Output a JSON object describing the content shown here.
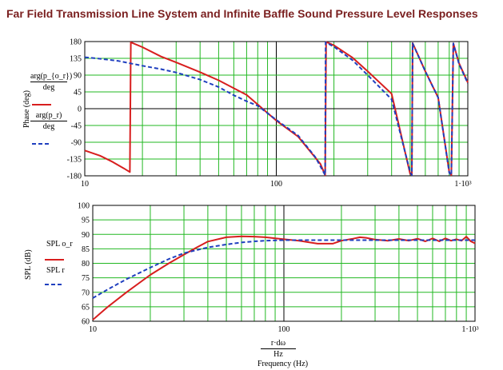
{
  "title": "Far Field Transmission Line System and Infinite Baffle Sound Pressure Level Responses",
  "colors": {
    "series_red": "#d81e1e",
    "series_blue": "#1f3fbf",
    "grid": "#22b822",
    "title": "#7a1f1f"
  },
  "top_plot": {
    "ylabel": "Phase (deg)",
    "legend": [
      {
        "numerator": "arg(p_{o_r})",
        "denominator": "deg",
        "line": "solid",
        "color": "#d81e1e"
      },
      {
        "numerator": "arg(p_r)",
        "denominator": "deg",
        "line": "dashed",
        "color": "#1f3fbf"
      }
    ],
    "ytick_labels": [
      "180",
      "135",
      "90",
      "45",
      "0",
      "-45",
      "-90",
      "-135",
      "-180"
    ],
    "xtick_labels": [
      "10",
      "100",
      "1·10³"
    ]
  },
  "bottom_plot": {
    "ylabel": "SPL (dB)",
    "legend": [
      {
        "label": "SPL o_r",
        "line": "solid",
        "color": "#d81e1e"
      },
      {
        "label": "SPL r",
        "line": "dashed",
        "color": "#1f3fbf"
      }
    ],
    "ytick_labels": [
      "100",
      "95",
      "90",
      "85",
      "80",
      "75",
      "70",
      "65",
      "60"
    ],
    "xtick_labels": [
      "10",
      "100",
      "1·10³"
    ],
    "xlabel_fraction": {
      "numerator": "r·dω",
      "denominator": "Hz"
    },
    "xlabel": "Frequency (Hz)"
  },
  "chart_data": [
    {
      "type": "line",
      "xscale": "log",
      "xlim": [
        10,
        1000
      ],
      "ylim": [
        -180,
        180
      ],
      "ytick_step": 45,
      "grid": true,
      "series": [
        {
          "name": "arg(p_{o_r})/deg",
          "x": [
            10,
            12,
            14,
            16,
            17.2,
            17.4,
            20,
            25,
            30,
            40,
            50,
            70,
            100,
            130,
            170,
            180,
            182,
            200,
            250,
            300,
            400,
            500,
            510,
            515,
            600,
            700,
            800,
            820,
            840,
            900,
            1000
          ],
          "y": [
            -112,
            -126,
            -143,
            -160,
            -170,
            178,
            165,
            140,
            124,
            98,
            76,
            37,
            -32,
            -75,
            -148,
            -178,
            179,
            170,
            137,
            100,
            40,
            -175,
            -178,
            176,
            100,
            30,
            -170,
            -178,
            175,
            122,
            70
          ]
        },
        {
          "name": "arg(p_r)/deg",
          "x": [
            10,
            12,
            15,
            20,
            25,
            30,
            40,
            50,
            60,
            70,
            80,
            100,
            130,
            160,
            180,
            181,
            200,
            250,
            300,
            400,
            500,
            510,
            515,
            600,
            700,
            800,
            820,
            840,
            900,
            1000
          ],
          "y": [
            138,
            134,
            128,
            115,
            106,
            97,
            78,
            58,
            36,
            20,
            8,
            -30,
            -72,
            -130,
            -178,
            178,
            166,
            130,
            90,
            25,
            -170,
            -178,
            175,
            100,
            30,
            -172,
            -178,
            175,
            120,
            68
          ]
        }
      ]
    },
    {
      "type": "line",
      "xscale": "log",
      "xlim": [
        10,
        1000
      ],
      "ylim": [
        60,
        100
      ],
      "ytick_step": 5,
      "grid": true,
      "series": [
        {
          "name": "SPL o_r",
          "x": [
            10,
            12,
            15,
            20,
            25,
            30,
            35,
            40,
            50,
            60,
            70,
            80,
            100,
            120,
            150,
            180,
            200,
            230,
            250,
            270,
            300,
            350,
            400,
            450,
            500,
            550,
            600,
            650,
            700,
            750,
            800,
            850,
            900,
            950,
            1000
          ],
          "y": [
            60.5,
            65,
            70,
            76,
            80,
            83,
            85.5,
            87.5,
            89,
            89.3,
            89.2,
            89,
            88.3,
            87.8,
            86.8,
            86.8,
            87.8,
            88.5,
            89,
            88.8,
            88.2,
            87.8,
            88.4,
            87.8,
            88.5,
            87.6,
            88.6,
            87.6,
            88.6,
            87.8,
            88.3,
            87.8,
            89.2,
            87.6,
            86.9
          ]
        },
        {
          "name": "SPL r",
          "x": [
            10,
            12,
            15,
            20,
            25,
            30,
            40,
            50,
            60,
            70,
            80,
            100,
            150,
            200,
            300,
            500,
            700,
            1000
          ],
          "y": [
            68,
            71,
            74.5,
            78.5,
            81.5,
            83.5,
            85.5,
            86.5,
            87.2,
            87.6,
            87.8,
            88,
            88,
            88,
            88,
            88,
            88,
            88
          ]
        }
      ]
    }
  ]
}
